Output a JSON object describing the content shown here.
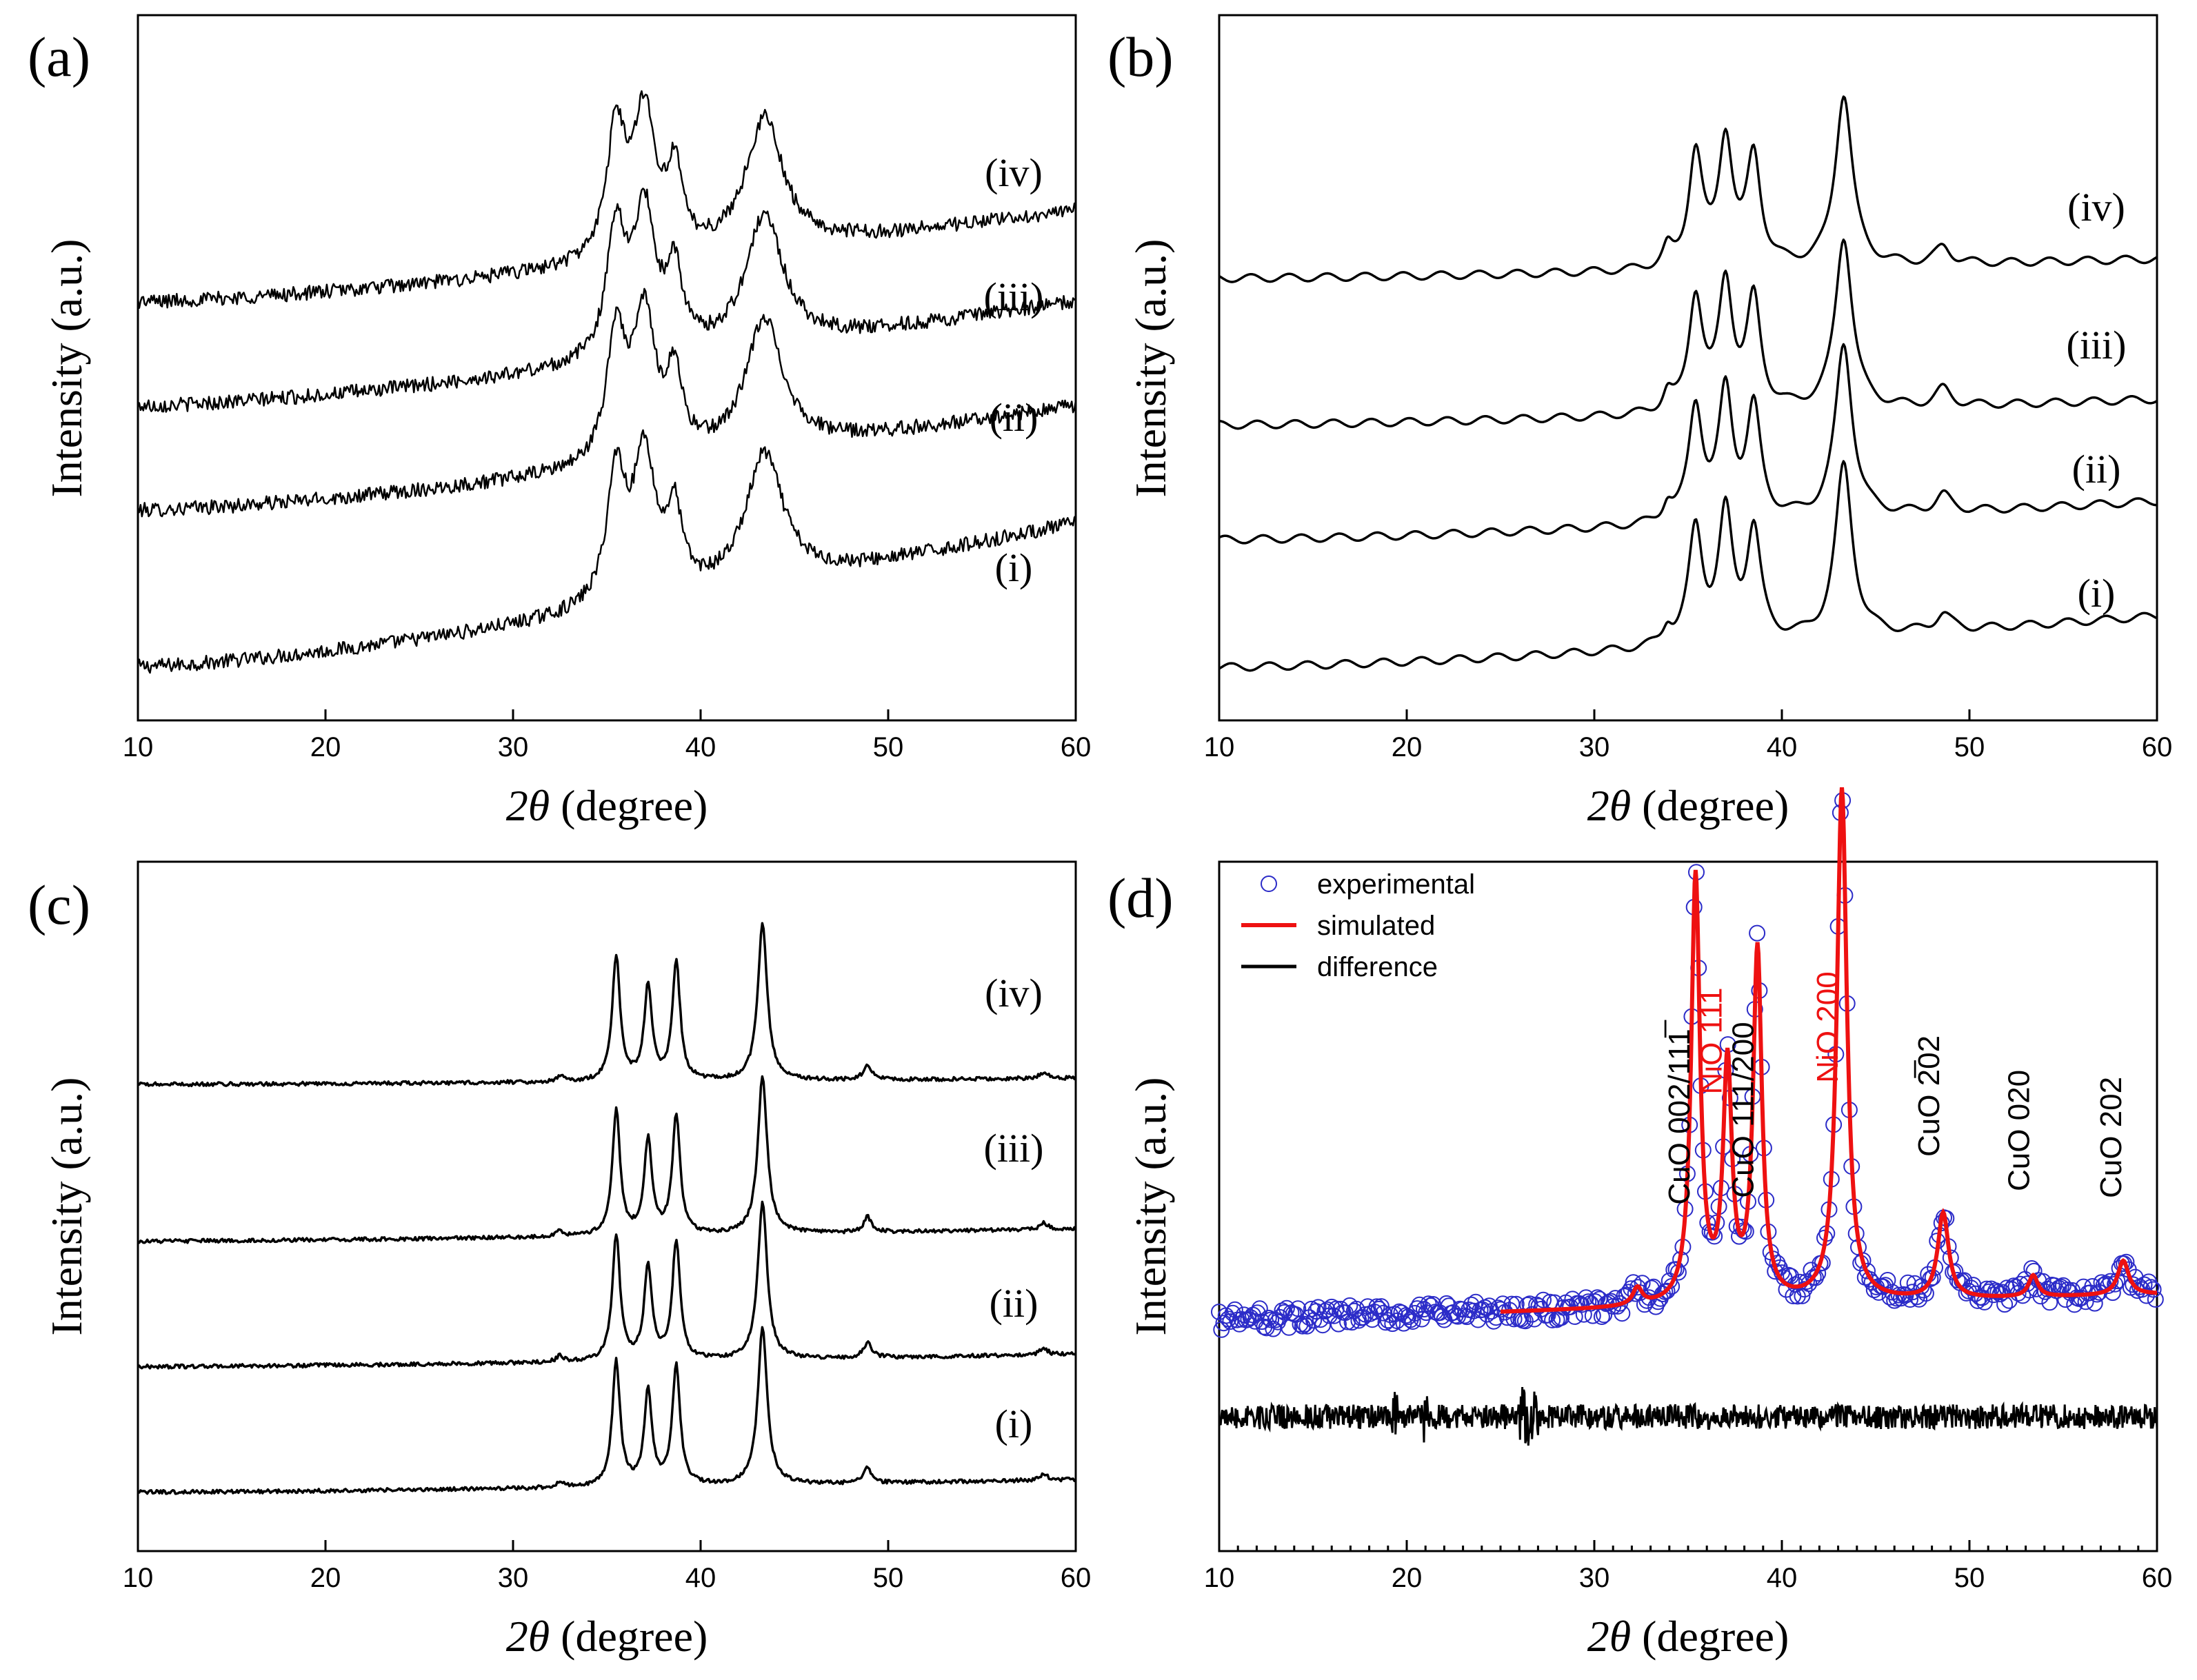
{
  "figure": {
    "x_range": [
      10,
      60
    ],
    "x_ticks": [
      "10",
      "20",
      "30",
      "40",
      "50",
      "60"
    ],
    "xlabel_theta": "2θ",
    "xlabel_unit": " (degree)",
    "ylabel": "Intensity (a.u.)"
  },
  "panels": [
    {
      "letter": "(a)"
    },
    {
      "letter": "(b)"
    },
    {
      "letter": "(c)"
    },
    {
      "letter": "(d)"
    }
  ],
  "chart_data": [
    {
      "panel": "(a)",
      "type": "line",
      "xlabel": "2θ (degree)",
      "ylabel": "Intensity (a.u.)",
      "xlim": [
        10,
        60
      ],
      "style": "noisy-broad",
      "peaks": [
        [
          35.5,
          1.0,
          0.6
        ],
        [
          37.0,
          1.1,
          0.7
        ],
        [
          38.6,
          0.6,
          0.5
        ],
        [
          43.4,
          1.0,
          1.2
        ]
      ],
      "series": [
        {
          "name": "(i)",
          "baseline_start": 0.04,
          "baseline_end": 0.26
        },
        {
          "name": "(ii)",
          "baseline_start": 0.28,
          "baseline_end": 0.44
        },
        {
          "name": "(iii)",
          "baseline_start": 0.44,
          "baseline_end": 0.6
        },
        {
          "name": "(iv)",
          "baseline_start": 0.6,
          "baseline_end": 0.74
        }
      ]
    },
    {
      "panel": "(b)",
      "type": "line",
      "xlabel": "2θ (degree)",
      "ylabel": "Intensity (a.u.)",
      "xlim": [
        10,
        60
      ],
      "style": "smooth",
      "peaks": [
        [
          35.4,
          1.0,
          0.45
        ],
        [
          37.0,
          1.1,
          0.45
        ],
        [
          38.5,
          0.95,
          0.45
        ],
        [
          43.3,
          1.5,
          0.55
        ],
        [
          48.6,
          0.15,
          0.5
        ],
        [
          33.9,
          0.15,
          0.3
        ]
      ],
      "series": [
        {
          "name": "(i)",
          "baseline_start": 0.04,
          "baseline_end": 0.12
        },
        {
          "name": "(ii)",
          "baseline_start": 0.24,
          "baseline_end": 0.3
        },
        {
          "name": "(iii)",
          "baseline_start": 0.42,
          "baseline_end": 0.46
        },
        {
          "name": "(iv)",
          "baseline_start": 0.65,
          "baseline_end": 0.68
        }
      ]
    },
    {
      "panel": "(c)",
      "type": "line",
      "xlabel": "2θ (degree)",
      "ylabel": "Intensity (a.u.)",
      "xlim": [
        10,
        60
      ],
      "style": "sharp",
      "peaks": [
        [
          35.5,
          1.0,
          0.25
        ],
        [
          37.2,
          0.75,
          0.25
        ],
        [
          38.7,
          0.95,
          0.25
        ],
        [
          43.3,
          1.25,
          0.3
        ],
        [
          48.9,
          0.12,
          0.25
        ],
        [
          58.3,
          0.05,
          0.25
        ],
        [
          32.5,
          0.05,
          0.2
        ]
      ],
      "series": [
        {
          "name": "(i)",
          "baseline_start": 0.05,
          "baseline_end": 0.07
        },
        {
          "name": "(ii)",
          "baseline_start": 0.25,
          "baseline_end": 0.27
        },
        {
          "name": "(iii)",
          "baseline_start": 0.45,
          "baseline_end": 0.47
        },
        {
          "name": "(iv)",
          "baseline_start": 0.7,
          "baseline_end": 0.71
        }
      ]
    },
    {
      "panel": "(d)",
      "type": "scatter+line",
      "xlabel": "2θ (degree)",
      "ylabel": "Intensity (a.u.)",
      "xlim": [
        10,
        60
      ],
      "legend": [
        "experimental",
        "simulated",
        "difference"
      ],
      "legend_position": "top-left",
      "colors": {
        "experimental": "#2b2bc8",
        "simulated": "#ee1111",
        "difference": "#000000"
      },
      "simulated_start": 25,
      "peaks": [
        [
          35.4,
          1.0,
          0.28
        ],
        [
          37.1,
          0.55,
          0.28
        ],
        [
          38.7,
          0.82,
          0.28
        ],
        [
          43.2,
          1.2,
          0.32
        ],
        [
          48.6,
          0.2,
          0.35
        ],
        [
          53.4,
          0.05,
          0.3
        ],
        [
          58.2,
          0.08,
          0.35
        ],
        [
          32.3,
          0.04,
          0.3
        ]
      ],
      "annotations": [
        {
          "text": "CuO 002/111̅",
          "x": 35.3,
          "color": "#000000"
        },
        {
          "text": "NiO 111",
          "x": 37.0,
          "color": "#ee1111"
        },
        {
          "text": "CuO 111/200",
          "x": 38.7,
          "color": "#000000"
        },
        {
          "text": "NiO 200",
          "x": 43.2,
          "color": "#ee1111"
        },
        {
          "text": "CuO 2̅02",
          "x": 48.6,
          "color": "#000000"
        },
        {
          "text": "CuO 020",
          "x": 53.4,
          "color": "#000000"
        },
        {
          "text": "CuO 202",
          "x": 58.3,
          "color": "#000000"
        }
      ]
    }
  ]
}
